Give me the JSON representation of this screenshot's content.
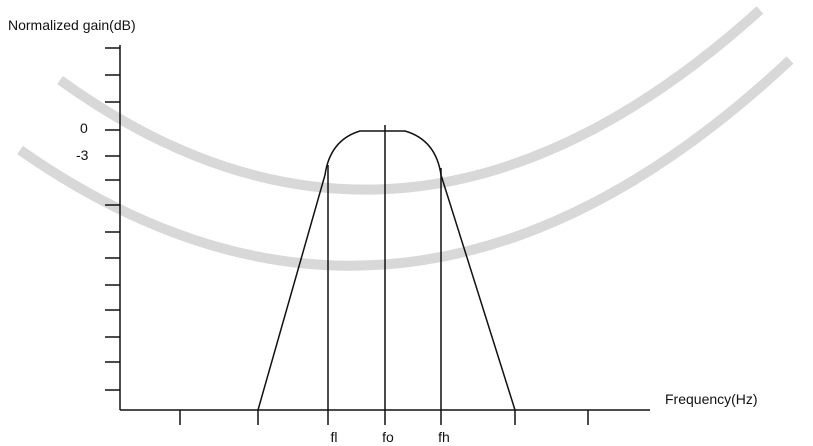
{
  "diagram": {
    "y_axis_label": "Normalized gain(dB)",
    "x_axis_label": "Frequency(Hz)",
    "y_labels": [
      "0",
      "-3"
    ],
    "x_labels": [
      "fl",
      "fo",
      "fh"
    ]
  }
}
